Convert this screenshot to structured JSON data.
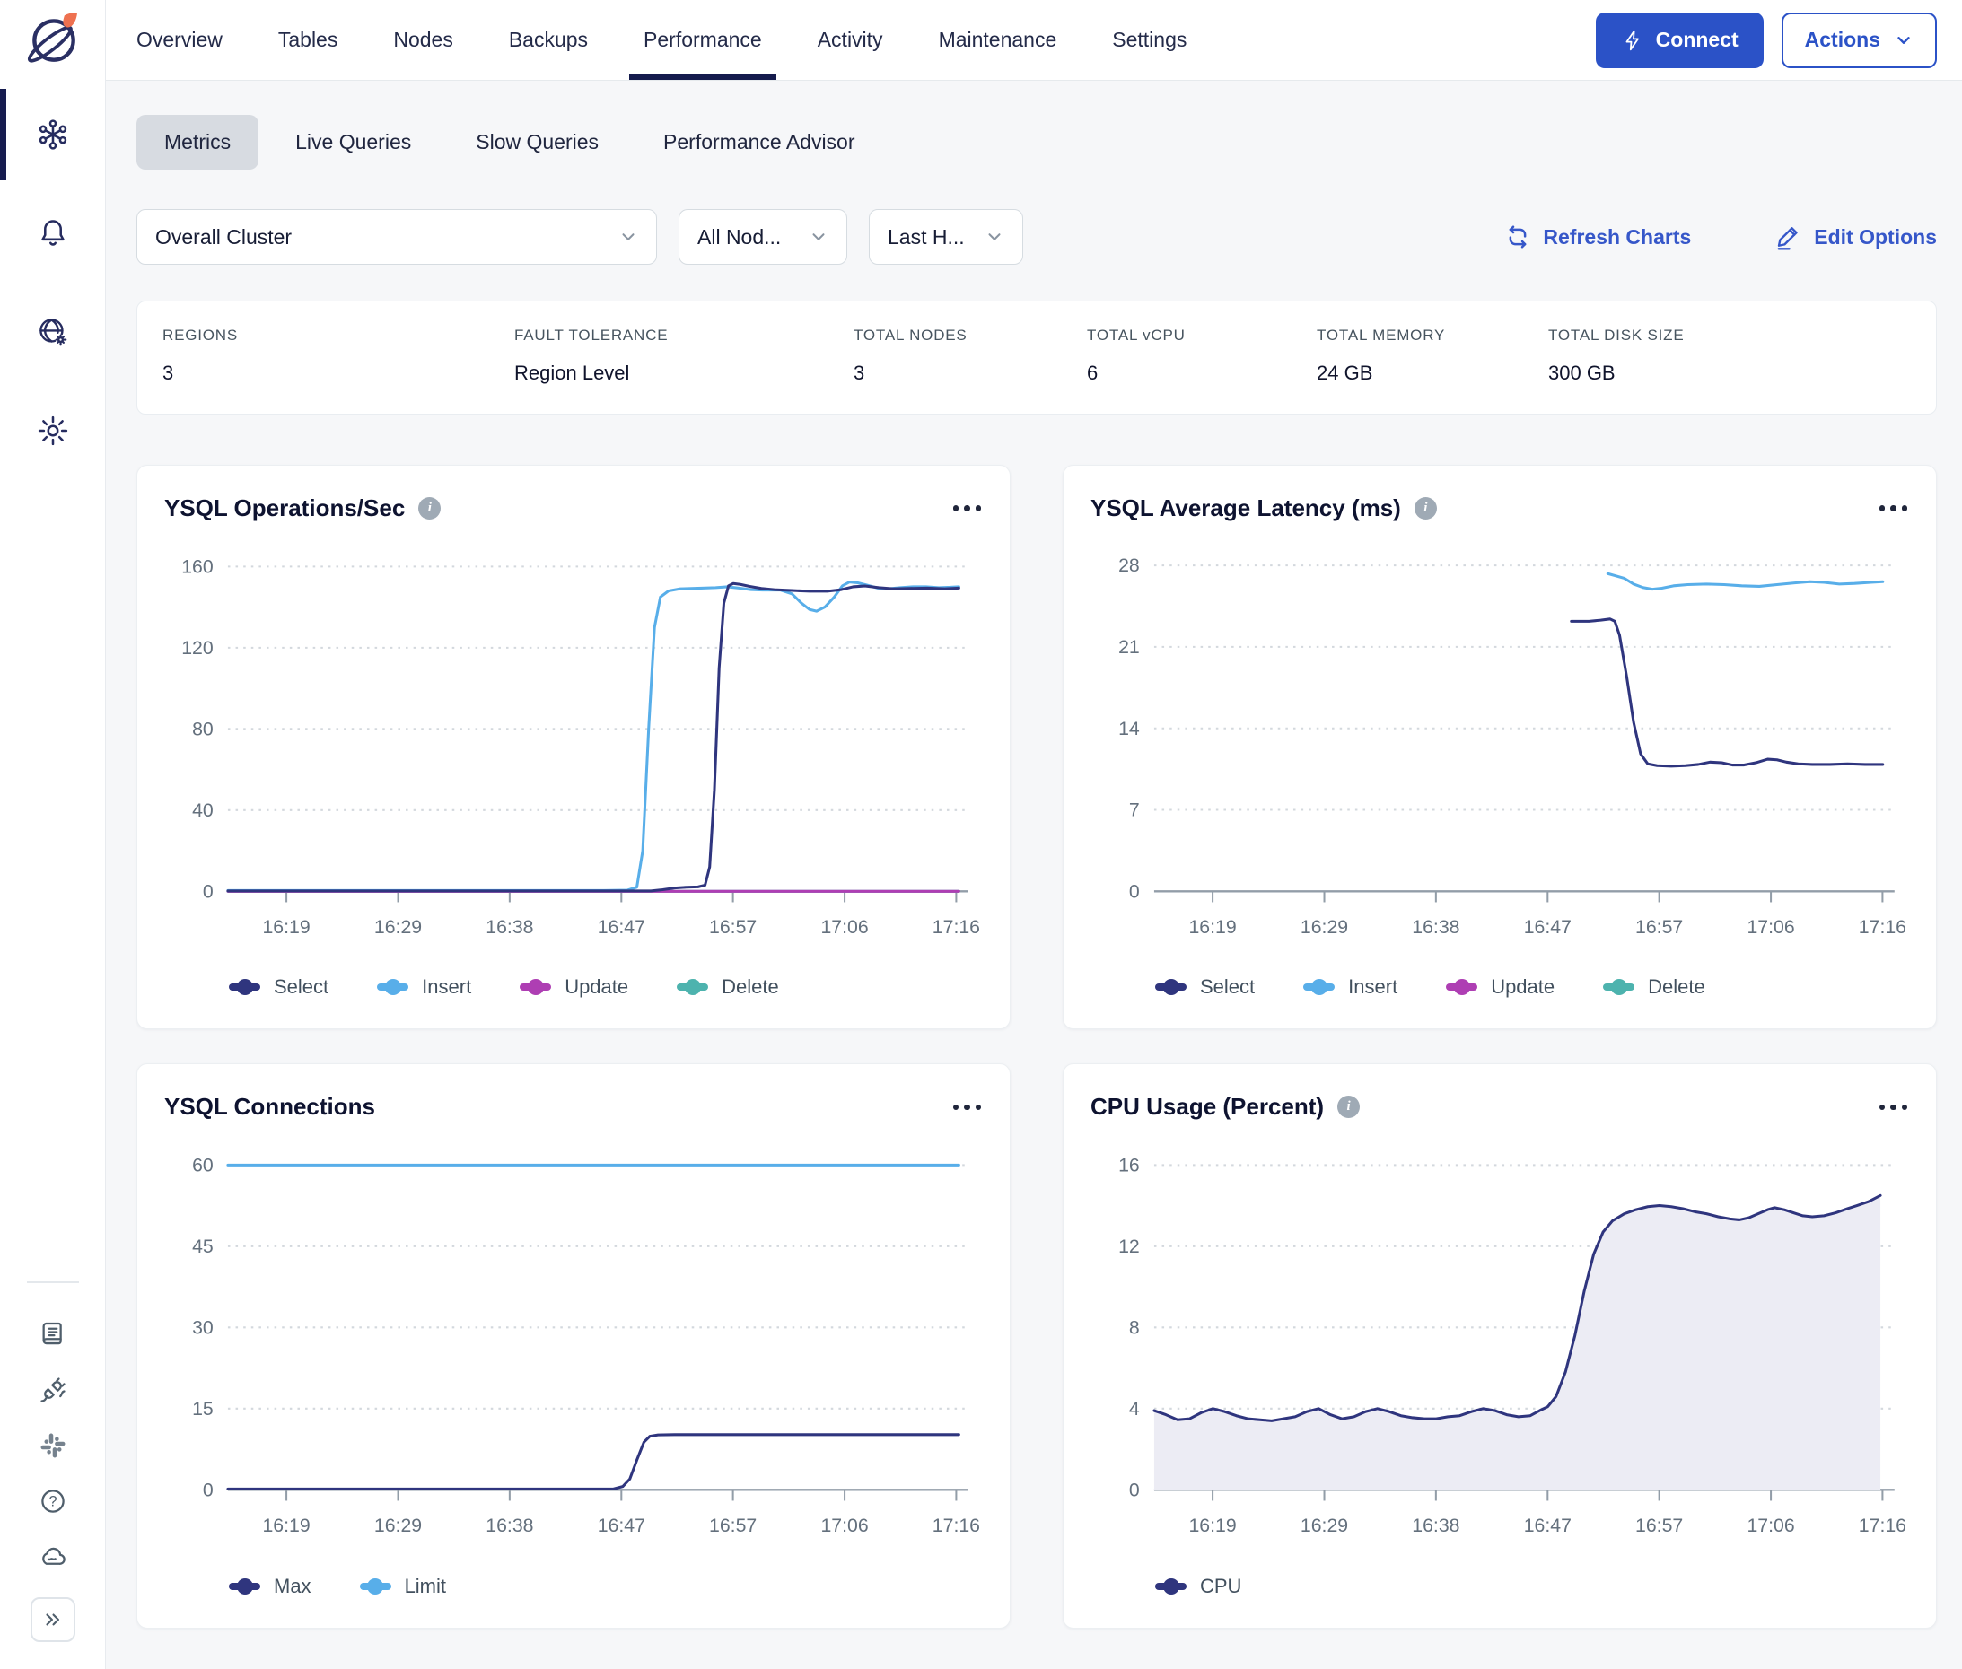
{
  "colors": {
    "accent_blue": "#2B52C7",
    "link_blue": "#3657C9",
    "navy_series": "#2F357E",
    "lightblue_series": "#58AEE9",
    "magenta_series": "#AE3EB3",
    "teal_series": "#4DB3AE",
    "active_underline": "#151B4D",
    "cpu_area_fill": "#ECECF4"
  },
  "icons": {
    "info_glyph": "i",
    "help_glyph": "?"
  },
  "header": {
    "tabs": [
      {
        "label": "Overview"
      },
      {
        "label": "Tables"
      },
      {
        "label": "Nodes"
      },
      {
        "label": "Backups"
      },
      {
        "label": "Performance",
        "active": true
      },
      {
        "label": "Activity"
      },
      {
        "label": "Maintenance"
      },
      {
        "label": "Settings"
      }
    ],
    "connect_label": "Connect",
    "actions_label": "Actions"
  },
  "subtabs": [
    {
      "label": "Metrics",
      "active": true
    },
    {
      "label": "Live Queries"
    },
    {
      "label": "Slow Queries"
    },
    {
      "label": "Performance Advisor"
    }
  ],
  "filters": {
    "cluster": "Overall Cluster",
    "nodes": "All Nod...",
    "range": "Last H..."
  },
  "toolbar": {
    "refresh_label": "Refresh Charts",
    "edit_label": "Edit Options"
  },
  "stats": [
    {
      "label": "REGIONS",
      "value": "3"
    },
    {
      "label": "FAULT TOLERANCE",
      "value": "Region Level"
    },
    {
      "label": "TOTAL NODES",
      "value": "3"
    },
    {
      "label": "TOTAL vCPU",
      "value": "6"
    },
    {
      "label": "TOTAL MEMORY",
      "value": "24 GB"
    },
    {
      "label": "TOTAL DISK SIZE",
      "value": "300 GB"
    }
  ],
  "chart_data": [
    {
      "type": "line",
      "title": "YSQL Operations/Sec",
      "x_unit": "minutes after 16:00",
      "x_domain": [
        14,
        77
      ],
      "xlabels": [
        "16:19",
        "16:29",
        "16:38",
        "16:47",
        "16:57",
        "17:06",
        "17:16"
      ],
      "yticks": [
        0,
        40,
        80,
        120,
        160
      ],
      "ymax": 172,
      "grid": "dotted-horizontal",
      "legend_position": "bottom-left",
      "series": [
        {
          "name": "Select",
          "color": "#2F357E",
          "points": [
            [
              14,
              0.2
            ],
            [
              50,
              0.2
            ],
            [
              51,
              0.8
            ],
            [
              52,
              1.6
            ],
            [
              53,
              2
            ],
            [
              54,
              2.2
            ],
            [
              54.6,
              3
            ],
            [
              55,
              12
            ],
            [
              55.4,
              50
            ],
            [
              55.8,
              110
            ],
            [
              56.2,
              142
            ],
            [
              56.6,
              150.5
            ],
            [
              57,
              151.6
            ],
            [
              57.6,
              151.2
            ],
            [
              58.4,
              150.2
            ],
            [
              59.4,
              149.2
            ],
            [
              60.5,
              148.6
            ],
            [
              62,
              148.2
            ],
            [
              63.5,
              147.8
            ],
            [
              65,
              147.8
            ],
            [
              66.2,
              148.6
            ],
            [
              67.2,
              150
            ],
            [
              68.2,
              150.4
            ],
            [
              69.4,
              149.6
            ],
            [
              70.6,
              149
            ],
            [
              72,
              149.2
            ],
            [
              73.5,
              149.4
            ],
            [
              75,
              149
            ],
            [
              76.2,
              149.4
            ]
          ]
        },
        {
          "name": "Insert",
          "color": "#58AEE9",
          "points": [
            [
              14,
              0.4
            ],
            [
              46,
              0.4
            ],
            [
              48,
              0.6
            ],
            [
              48.8,
              2
            ],
            [
              49.3,
              20
            ],
            [
              49.8,
              80
            ],
            [
              50.3,
              130
            ],
            [
              50.8,
              145
            ],
            [
              51.5,
              148
            ],
            [
              52.5,
              149
            ],
            [
              54,
              149.3
            ],
            [
              55.5,
              149.6
            ],
            [
              56.5,
              150
            ],
            [
              57.5,
              149.4
            ],
            [
              58.5,
              148.6
            ],
            [
              59.5,
              148.4
            ],
            [
              61,
              148.4
            ],
            [
              62,
              146.5
            ],
            [
              62.8,
              142
            ],
            [
              63.5,
              138.8
            ],
            [
              64.1,
              138
            ],
            [
              64.8,
              140
            ],
            [
              65.6,
              145
            ],
            [
              66.3,
              150.5
            ],
            [
              66.9,
              152.4
            ],
            [
              67.6,
              152
            ],
            [
              68.4,
              150.8
            ],
            [
              69.3,
              149.4
            ],
            [
              70.2,
              149
            ],
            [
              71.2,
              149.6
            ],
            [
              72.3,
              150
            ],
            [
              73.4,
              150
            ],
            [
              74.5,
              149.6
            ],
            [
              75.5,
              149.8
            ],
            [
              76.2,
              150
            ]
          ]
        },
        {
          "name": "Update",
          "color": "#AE3EB3",
          "points": [
            [
              14,
              0
            ],
            [
              76.2,
              0
            ]
          ]
        },
        {
          "name": "Delete",
          "color": "#4DB3AE",
          "points": [
            [
              14,
              0
            ],
            [
              76.2,
              0
            ]
          ]
        }
      ]
    },
    {
      "type": "line",
      "title": "YSQL Average Latency (ms)",
      "x_unit": "minutes after 16:00",
      "x_domain": [
        14,
        77
      ],
      "xlabels": [
        "16:19",
        "16:29",
        "16:38",
        "16:47",
        "16:57",
        "17:06",
        "17:16"
      ],
      "yticks": [
        0,
        7,
        14,
        21,
        28
      ],
      "ymax": 30,
      "grid": "dotted-horizontal",
      "legend_position": "bottom-left",
      "series": [
        {
          "name": "Select",
          "color": "#2F357E",
          "points": [
            [
              49.5,
              23.2
            ],
            [
              51,
              23.2
            ],
            [
              52,
              23.3
            ],
            [
              52.8,
              23.4
            ],
            [
              53.2,
              23.2
            ],
            [
              53.6,
              22
            ],
            [
              54.2,
              18.5
            ],
            [
              54.8,
              14.5
            ],
            [
              55.4,
              11.8
            ],
            [
              56,
              10.95
            ],
            [
              56.8,
              10.8
            ],
            [
              58,
              10.75
            ],
            [
              59.2,
              10.8
            ],
            [
              60.3,
              10.9
            ],
            [
              61.3,
              11.1
            ],
            [
              62.3,
              11.05
            ],
            [
              63.2,
              10.85
            ],
            [
              64.2,
              10.85
            ],
            [
              65.2,
              11.05
            ],
            [
              66.2,
              11.35
            ],
            [
              67,
              11.3
            ],
            [
              67.8,
              11.1
            ],
            [
              68.8,
              10.95
            ],
            [
              70,
              10.9
            ],
            [
              71.5,
              10.9
            ],
            [
              73,
              10.95
            ],
            [
              74.5,
              10.9
            ],
            [
              76,
              10.9
            ]
          ]
        },
        {
          "name": "Insert",
          "color": "#58AEE9",
          "points": [
            [
              52.6,
              27.3
            ],
            [
              54,
              26.9
            ],
            [
              54.8,
              26.4
            ],
            [
              55.6,
              26.1
            ],
            [
              56.4,
              25.95
            ],
            [
              57.2,
              26.05
            ],
            [
              58.2,
              26.25
            ],
            [
              59.4,
              26.35
            ],
            [
              61,
              26.4
            ],
            [
              62.5,
              26.35
            ],
            [
              64,
              26.25
            ],
            [
              65.5,
              26.2
            ],
            [
              67,
              26.35
            ],
            [
              68.5,
              26.5
            ],
            [
              69.8,
              26.6
            ],
            [
              71,
              26.55
            ],
            [
              72.3,
              26.4
            ],
            [
              73.6,
              26.45
            ],
            [
              75,
              26.55
            ],
            [
              76,
              26.6
            ]
          ]
        },
        {
          "name": "Update",
          "color": "#AE3EB3",
          "points": []
        },
        {
          "name": "Delete",
          "color": "#4DB3AE",
          "points": []
        }
      ]
    },
    {
      "type": "line",
      "title": "YSQL Connections",
      "x_unit": "minutes after 16:00",
      "x_domain": [
        14,
        77
      ],
      "xlabels": [
        "16:19",
        "16:29",
        "16:38",
        "16:47",
        "16:57",
        "17:06",
        "17:16"
      ],
      "yticks": [
        0,
        15,
        30,
        45,
        60
      ],
      "ymax": 64.5,
      "grid": "dotted-horizontal",
      "legend_position": "bottom-left",
      "series": [
        {
          "name": "Max",
          "color": "#2F357E",
          "points": [
            [
              14,
              0.15
            ],
            [
              46.8,
              0.15
            ],
            [
              47.6,
              0.6
            ],
            [
              48.2,
              2
            ],
            [
              48.8,
              5.5
            ],
            [
              49.4,
              8.8
            ],
            [
              49.9,
              9.9
            ],
            [
              50.6,
              10.15
            ],
            [
              52,
              10.2
            ],
            [
              76.2,
              10.2
            ]
          ]
        },
        {
          "name": "Limit",
          "color": "#58AEE9",
          "points": [
            [
              14,
              60
            ],
            [
              76.2,
              60
            ]
          ]
        }
      ]
    },
    {
      "type": "area",
      "title": "CPU Usage (Percent)",
      "x_unit": "minutes after 16:00",
      "x_domain": [
        14,
        77
      ],
      "xlabels": [
        "16:19",
        "16:29",
        "16:38",
        "16:47",
        "16:57",
        "17:06",
        "17:16"
      ],
      "yticks": [
        0,
        4,
        8,
        12,
        16
      ],
      "ymax": 17.2,
      "grid": "dotted-horizontal",
      "legend_position": "bottom-left",
      "series": [
        {
          "name": "CPU",
          "color": "#2F357E",
          "area": true,
          "fill": "#ECECF4",
          "points": [
            [
              14,
              3.9
            ],
            [
              15,
              3.7
            ],
            [
              16,
              3.45
            ],
            [
              17,
              3.5
            ],
            [
              18,
              3.8
            ],
            [
              19,
              4.0
            ],
            [
              20,
              3.85
            ],
            [
              21,
              3.65
            ],
            [
              22,
              3.5
            ],
            [
              23,
              3.45
            ],
            [
              24,
              3.4
            ],
            [
              25,
              3.5
            ],
            [
              26,
              3.6
            ],
            [
              27,
              3.85
            ],
            [
              28,
              4.0
            ],
            [
              29,
              3.7
            ],
            [
              30,
              3.5
            ],
            [
              31,
              3.6
            ],
            [
              32,
              3.85
            ],
            [
              33,
              4.0
            ],
            [
              34,
              3.85
            ],
            [
              35,
              3.65
            ],
            [
              36,
              3.55
            ],
            [
              37,
              3.5
            ],
            [
              38,
              3.5
            ],
            [
              39,
              3.6
            ],
            [
              40,
              3.65
            ],
            [
              41,
              3.85
            ],
            [
              42,
              4.0
            ],
            [
              43,
              3.9
            ],
            [
              44,
              3.7
            ],
            [
              45,
              3.6
            ],
            [
              46,
              3.65
            ],
            [
              46.8,
              3.9
            ],
            [
              47.5,
              4.1
            ],
            [
              48.2,
              4.6
            ],
            [
              49,
              5.8
            ],
            [
              49.8,
              7.6
            ],
            [
              50.6,
              9.8
            ],
            [
              51.4,
              11.6
            ],
            [
              52.2,
              12.7
            ],
            [
              53,
              13.25
            ],
            [
              54,
              13.6
            ],
            [
              55,
              13.8
            ],
            [
              56,
              13.95
            ],
            [
              57,
              14.0
            ],
            [
              58,
              13.95
            ],
            [
              59,
              13.85
            ],
            [
              60,
              13.7
            ],
            [
              61,
              13.6
            ],
            [
              62,
              13.45
            ],
            [
              63,
              13.35
            ],
            [
              63.8,
              13.3
            ],
            [
              64.6,
              13.4
            ],
            [
              65.4,
              13.6
            ],
            [
              66.2,
              13.8
            ],
            [
              66.8,
              13.9
            ],
            [
              67.6,
              13.8
            ],
            [
              68.4,
              13.65
            ],
            [
              69.2,
              13.5
            ],
            [
              70,
              13.45
            ],
            [
              71,
              13.5
            ],
            [
              72,
              13.65
            ],
            [
              73,
              13.85
            ],
            [
              73.8,
              14.0
            ],
            [
              74.8,
              14.2
            ],
            [
              75.8,
              14.5
            ]
          ]
        }
      ]
    }
  ]
}
